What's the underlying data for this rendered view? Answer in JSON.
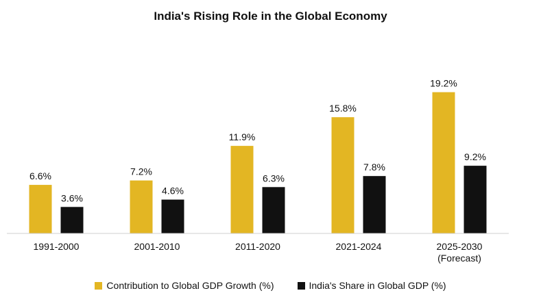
{
  "chart_data": {
    "type": "bar",
    "title": "India's Rising Role in the Global Economy",
    "categories": [
      "1991-2000",
      "2001-2010",
      "2011-2020",
      "2021-2024",
      "2025-2030\n(Forecast)"
    ],
    "series": [
      {
        "name": "Contribution to Global GDP Growth (%)",
        "values": [
          6.6,
          7.2,
          11.9,
          15.8,
          19.2
        ],
        "labels": [
          "6.6%",
          "7.2%",
          "11.9%",
          "15.8%",
          "19.2%"
        ],
        "color": "#E3B623"
      },
      {
        "name": "India's Share in Global GDP (%)",
        "values": [
          3.6,
          4.6,
          6.3,
          7.8,
          9.2
        ],
        "labels": [
          "3.6%",
          "4.6%",
          "6.3%",
          "7.8%",
          "9.2%"
        ],
        "color": "#111111"
      }
    ],
    "ylim": [
      0,
      21.4
    ],
    "grid": false,
    "legend_position": "bottom"
  }
}
